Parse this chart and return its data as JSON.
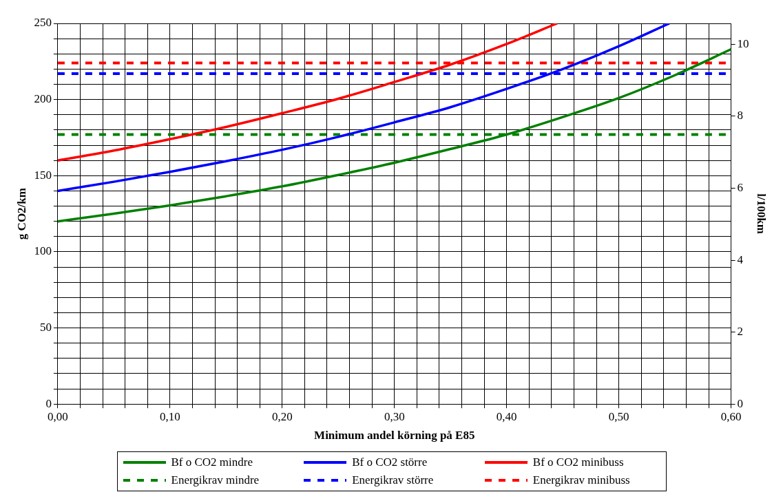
{
  "chart_data": {
    "type": "line",
    "xlabel": "Minimum andel körning på E85",
    "ylabel": "g CO2/km",
    "y2label": "l/100km",
    "xlim": [
      0,
      0.6
    ],
    "xticks": [
      {
        "value": 0,
        "label": "0,00"
      },
      {
        "value": 0.02,
        "label": null
      },
      {
        "value": 0.04,
        "label": null
      },
      {
        "value": 0.06,
        "label": null
      },
      {
        "value": 0.08,
        "label": null
      },
      {
        "value": 0.1,
        "label": "0,10"
      },
      {
        "value": 0.12,
        "label": null
      },
      {
        "value": 0.14,
        "label": null
      },
      {
        "value": 0.16,
        "label": null
      },
      {
        "value": 0.18,
        "label": null
      },
      {
        "value": 0.2,
        "label": "0,20"
      },
      {
        "value": 0.22,
        "label": null
      },
      {
        "value": 0.24,
        "label": null
      },
      {
        "value": 0.26,
        "label": null
      },
      {
        "value": 0.28,
        "label": null
      },
      {
        "value": 0.3,
        "label": "0,30"
      },
      {
        "value": 0.32,
        "label": null
      },
      {
        "value": 0.34,
        "label": null
      },
      {
        "value": 0.36,
        "label": null
      },
      {
        "value": 0.38,
        "label": null
      },
      {
        "value": 0.4,
        "label": "0,40"
      },
      {
        "value": 0.42,
        "label": null
      },
      {
        "value": 0.44,
        "label": null
      },
      {
        "value": 0.46,
        "label": null
      },
      {
        "value": 0.48,
        "label": null
      },
      {
        "value": 0.5,
        "label": "0,50"
      },
      {
        "value": 0.52,
        "label": null
      },
      {
        "value": 0.54,
        "label": null
      },
      {
        "value": 0.56,
        "label": null
      },
      {
        "value": 0.58,
        "label": null
      },
      {
        "value": 0.6,
        "label": "0,60"
      }
    ],
    "ylim": [
      0,
      250
    ],
    "yticks": [
      0,
      {
        "value": 10,
        "label": null
      },
      {
        "value": 20,
        "label": null
      },
      {
        "value": 30,
        "label": null
      },
      {
        "value": 40,
        "label": null
      },
      50,
      {
        "value": 60,
        "label": null
      },
      {
        "value": 70,
        "label": null
      },
      {
        "value": 80,
        "label": null
      },
      {
        "value": 90,
        "label": null
      },
      100,
      {
        "value": 110,
        "label": null
      },
      {
        "value": 120,
        "label": null
      },
      {
        "value": 130,
        "label": null
      },
      {
        "value": 140,
        "label": null
      },
      150,
      {
        "value": 160,
        "label": null
      },
      {
        "value": 170,
        "label": null
      },
      {
        "value": 180,
        "label": null
      },
      {
        "value": 190,
        "label": null
      },
      200,
      {
        "value": 210,
        "label": null
      },
      {
        "value": 220,
        "label": null
      },
      {
        "value": 230,
        "label": null
      },
      {
        "value": 240,
        "label": null
      },
      250
    ],
    "y2lim": [
      0,
      10.58
    ],
    "y2ticks": [
      0,
      2,
      4,
      6,
      8,
      10
    ],
    "grid": true,
    "legend": "bottom",
    "marker": "none",
    "series": [
      {
        "name": "Bf o CO2 mindre",
        "color": "#008000",
        "line_style": "solid",
        "x": [
          0,
          0.05,
          0.1,
          0.15,
          0.2,
          0.25,
          0.3,
          0.35,
          0.4,
          0.45,
          0.5,
          0.55,
          0.6
        ],
        "values": [
          120,
          125,
          130.5,
          136.5,
          143,
          150.5,
          158.5,
          167.5,
          177,
          188.5,
          201,
          216,
          233
        ]
      },
      {
        "name": "Bf o CO2 större",
        "color": "#0000ff",
        "line_style": "solid",
        "x": [
          0,
          0.05,
          0.1,
          0.15,
          0.2,
          0.25,
          0.3,
          0.35,
          0.4,
          0.45,
          0.5,
          0.545
        ],
        "values": [
          140,
          146,
          152.5,
          159.5,
          167,
          175.5,
          185,
          195,
          207,
          220,
          235,
          250
        ]
      },
      {
        "name": "Bf o CO2 minibuss",
        "color": "#ff0000",
        "line_style": "solid",
        "x": [
          0,
          0.05,
          0.1,
          0.15,
          0.2,
          0.25,
          0.3,
          0.35,
          0.4,
          0.445
        ],
        "values": [
          160,
          166.5,
          174,
          182,
          191,
          200.5,
          211.5,
          223,
          236.5,
          250
        ]
      },
      {
        "name": "Energikrav mindre",
        "color": "#008000",
        "line_style": "dashed",
        "x": [
          0,
          0.6
        ],
        "values": [
          177,
          177
        ]
      },
      {
        "name": "Energikrav större",
        "color": "#0000ff",
        "line_style": "dashed",
        "x": [
          0,
          0.6
        ],
        "values": [
          217,
          217
        ]
      },
      {
        "name": "Energikrav minibuss",
        "color": "#ff0000",
        "line_style": "dashed",
        "x": [
          0,
          0.6
        ],
        "values": [
          224,
          224
        ]
      }
    ]
  }
}
